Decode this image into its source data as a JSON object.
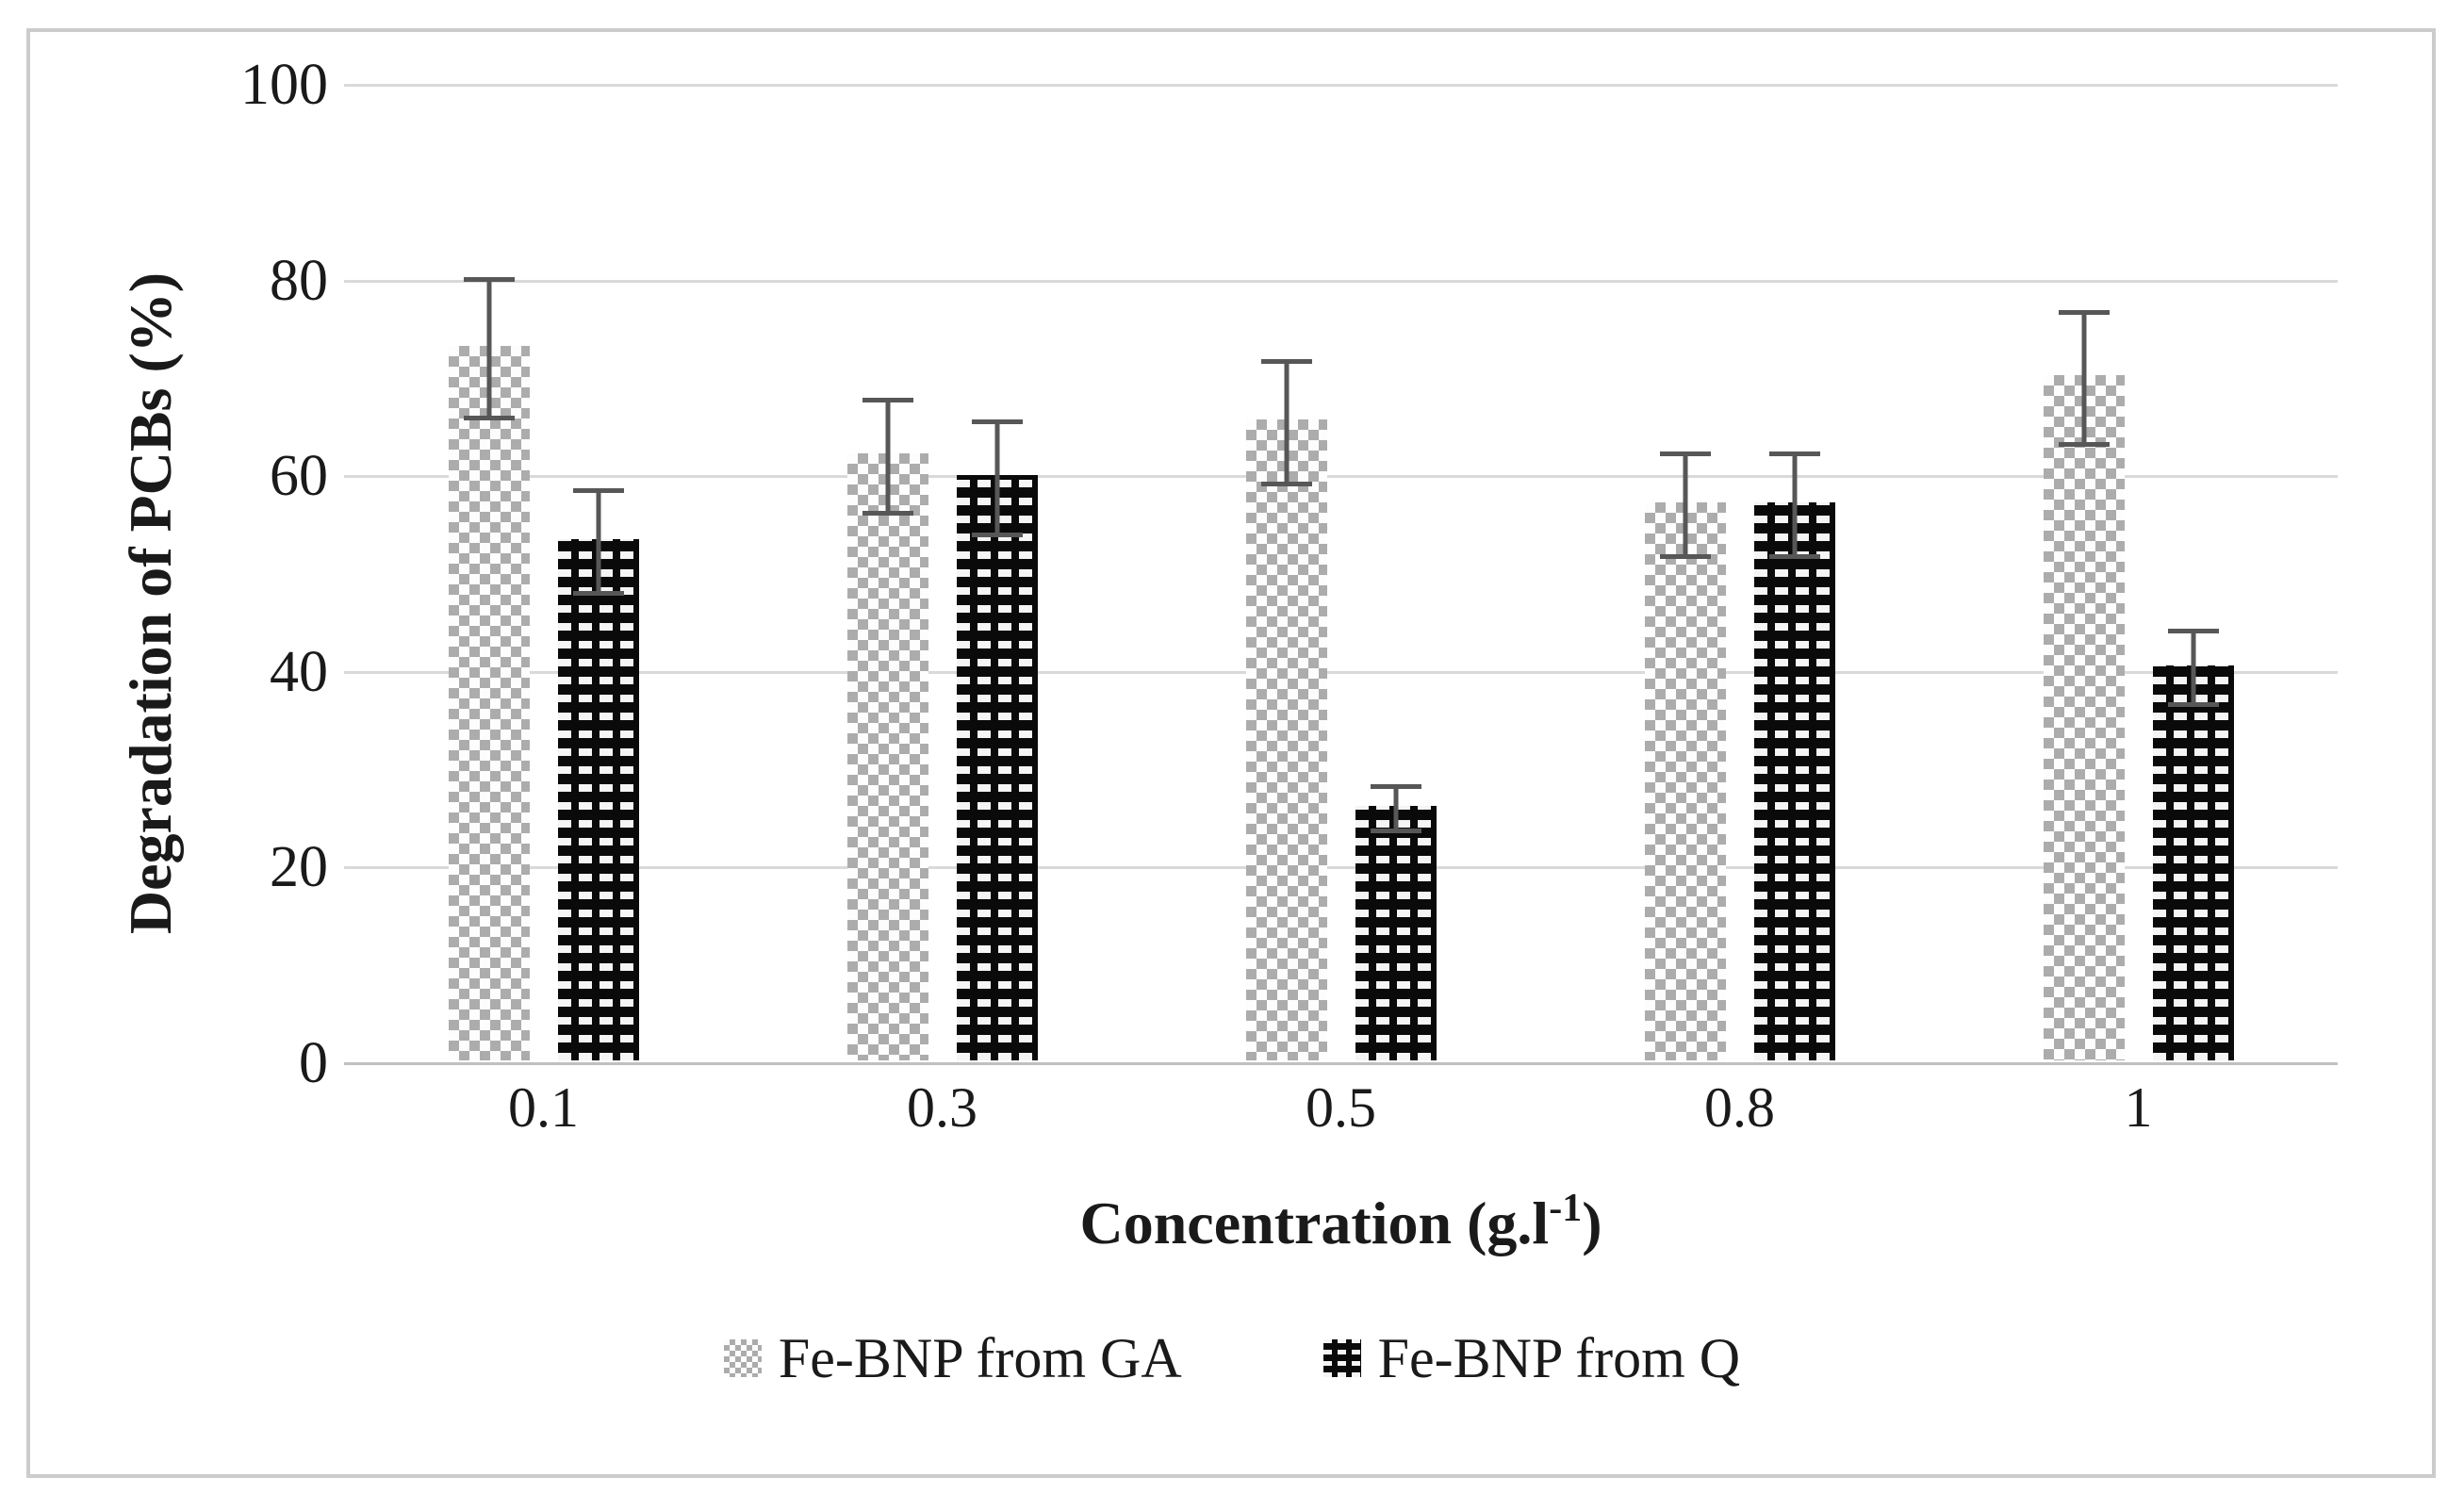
{
  "figure": {
    "background": "#ffffff",
    "frame_color": "#cccccc"
  },
  "chart_data": {
    "type": "bar",
    "title": "",
    "ylabel": "Degradation of PCBs (%)",
    "xlabel": {
      "prefix": "Concentration (g.l",
      "sup": "-1",
      "suffix": ")"
    },
    "categories": [
      "0.1",
      "0.3",
      "0.5",
      "0.8",
      "1"
    ],
    "series": [
      {
        "name": "Fe-BNP from GA",
        "pattern": "gray-weave",
        "values": [
          73,
          62,
          65.5,
          57,
          70
        ],
        "errors": [
          7.3,
          6,
          6.5,
          5.5,
          7
        ]
      },
      {
        "name": "Fe-BNP from Q",
        "pattern": "black-dash",
        "values": [
          53.3,
          59.8,
          26,
          57,
          40.4
        ],
        "errors": [
          5.5,
          6,
          2.5,
          5.5,
          4
        ]
      }
    ],
    "ylim": [
      0,
      100
    ],
    "yticks": [
      0,
      20,
      40,
      60,
      80,
      100
    ],
    "grid": true,
    "legend_position": "bottom",
    "colors": {
      "gridline": "#d9d9d9",
      "axis_line": "#c0c0c0",
      "error_bar": "#575757",
      "series_gray": "#acacac",
      "series_black": "#0a0a0a",
      "text": "#1a1a1a"
    }
  }
}
